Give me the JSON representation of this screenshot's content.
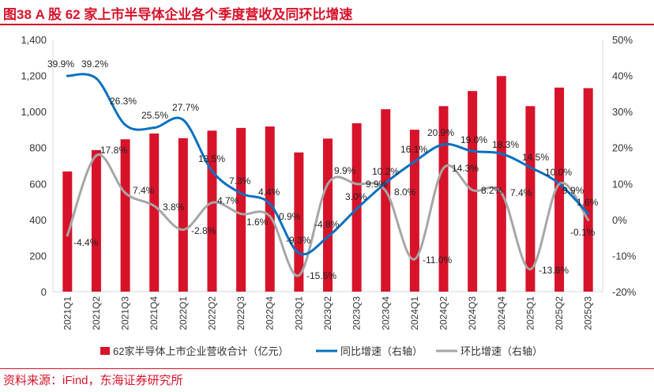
{
  "title": "图38 A 股 62 家上市半导体企业各个季度营收及同环比增速",
  "source": "资料来源：iFind，东海证券研究所",
  "colors": {
    "bar": "#d7132a",
    "yoy": "#0a70c0",
    "qoq": "#a6a6a6",
    "accent": "#d7132a"
  },
  "chart_data": {
    "type": "bar+line",
    "categories": [
      "2021Q1",
      "2021Q2",
      "2021Q3",
      "2021Q4",
      "2022Q1",
      "2022Q2",
      "2022Q3",
      "2022Q4",
      "2023Q1",
      "2023Q2",
      "2023Q3",
      "2023Q4",
      "2024Q1",
      "2024Q2",
      "2024Q3",
      "2024Q4",
      "2025Q1",
      "2025Q2",
      "2025Q3"
    ],
    "series": [
      {
        "name": "62家半导体上市企业营收合计（亿元）",
        "axis": "left",
        "type": "bar",
        "values": [
          667,
          786,
          846,
          878,
          852,
          894,
          909,
          917,
          773,
          850,
          935,
          1013,
          899,
          1030,
          1114,
          1197,
          1030,
          1133,
          1130
        ]
      },
      {
        "name": "同比增速（右轴）",
        "axis": "right",
        "type": "line",
        "values": [
          39.9,
          39.2,
          26.3,
          25.5,
          27.7,
          13.5,
          7.3,
          4.4,
          -9.3,
          -4.8,
          3.0,
          10.2,
          16.1,
          20.9,
          19.0,
          18.3,
          14.5,
          10.0,
          1.6
        ],
        "labels": [
          "39.9%",
          "39.2%",
          "26.3%",
          "25.5%",
          "27.7%",
          "13.5%",
          "7.3%",
          "4.4%",
          "-9.3%",
          "-4.8%",
          "3.0%",
          "10.2%",
          "16.1%",
          "20.9%",
          "19.0%",
          "18.3%",
          "14.5%",
          "10.0%",
          "1.6%"
        ]
      },
      {
        "name": "环比增速（右轴）",
        "axis": "right",
        "type": "line",
        "values": [
          -4.4,
          17.8,
          7.4,
          3.8,
          -2.8,
          4.7,
          1.6,
          0.9,
          -15.5,
          9.9,
          9.9,
          8.0,
          -11.0,
          14.3,
          8.2,
          7.4,
          -13.8,
          9.9,
          -0.1
        ],
        "labels": [
          "-4.4%",
          "17.8%",
          "7.4%",
          "3.8%",
          "-2.8%",
          "4.7%",
          "1.6%",
          "0.9%",
          "-15.5%",
          "9.9%",
          "9.9%",
          "8.0%",
          "-11.0%",
          "14.3%",
          "8.2%",
          "7.4%",
          "-13.8%",
          "9.9%",
          "-0.1%"
        ]
      }
    ],
    "left_axis": {
      "ylim": [
        0,
        1400
      ],
      "ticks": [
        "0",
        "200",
        "400",
        "600",
        "800",
        "1,000",
        "1,200",
        "1,400"
      ]
    },
    "right_axis": {
      "ylim": [
        -20,
        50
      ],
      "ticks": [
        "-20%",
        "-10%",
        "0%",
        "10%",
        "20%",
        "30%",
        "40%",
        "50%"
      ]
    },
    "legend": [
      "62家半导体上市企业营收合计（亿元）",
      "同比增速（右轴）",
      "环比增速（右轴）"
    ],
    "legend_position": "bottom",
    "grid": false
  }
}
